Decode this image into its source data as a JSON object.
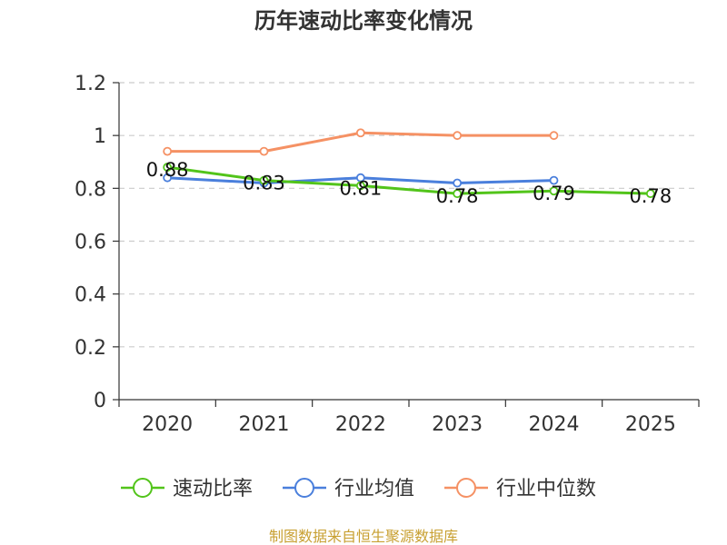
{
  "chart_data": {
    "type": "line",
    "title": "历年速动比率变化情况",
    "categories": [
      "2020",
      "2021",
      "2022",
      "2023",
      "2024",
      "2025"
    ],
    "ylim": [
      0,
      1.2
    ],
    "yticks": [
      "0",
      "0.2",
      "0.4",
      "0.6",
      "0.8",
      "1",
      "1.2"
    ],
    "grid": true,
    "legend_position": "bottom",
    "series": [
      {
        "name": "速动比率",
        "color": "#52c41a",
        "values": [
          0.88,
          0.83,
          0.81,
          0.78,
          0.79,
          0.78
        ],
        "labels": [
          "0.88",
          "0.83",
          "0.81",
          "0.78",
          "0.79",
          "0.78"
        ]
      },
      {
        "name": "行业均值",
        "color": "#4a7fdc",
        "values": [
          0.84,
          0.82,
          0.84,
          0.82,
          0.83,
          null
        ]
      },
      {
        "name": "行业中位数",
        "color": "#f59164",
        "values": [
          0.94,
          0.94,
          1.01,
          1.0,
          1.0,
          null
        ]
      }
    ]
  },
  "source_text": "制图数据来自恒生聚源数据库"
}
